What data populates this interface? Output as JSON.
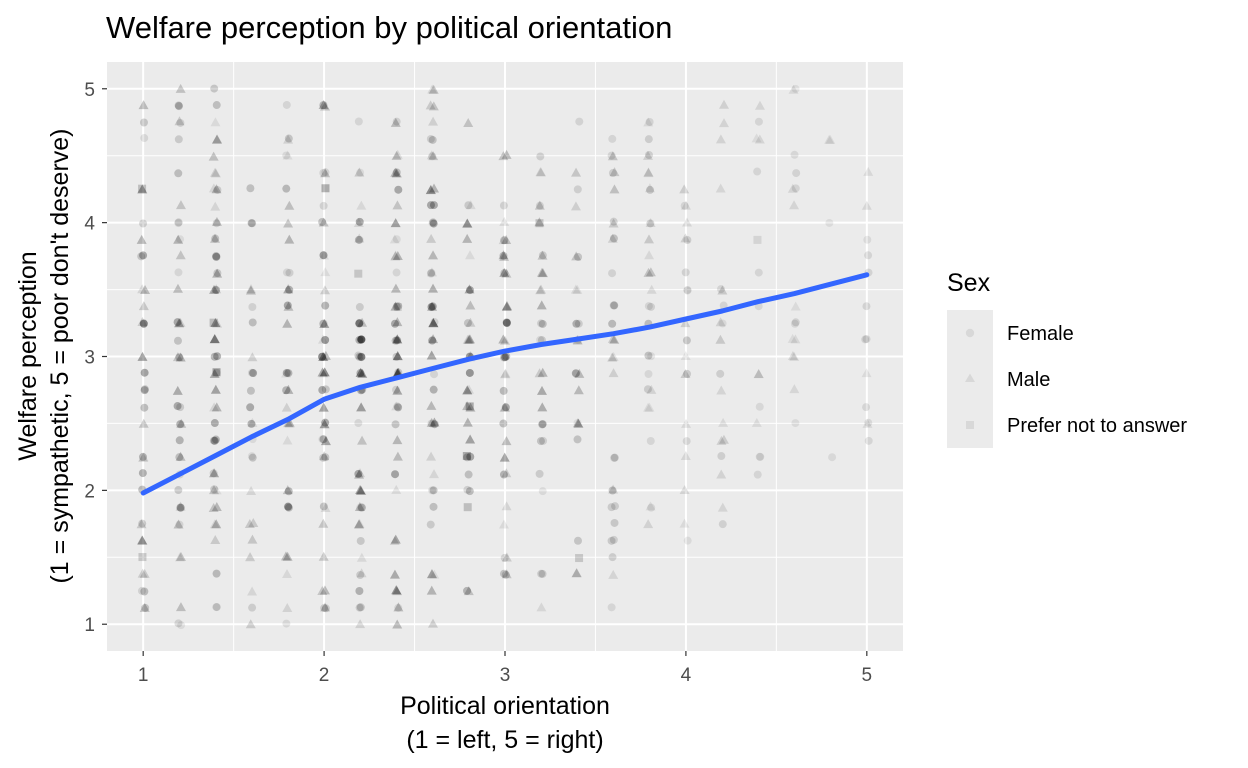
{
  "chart_data": {
    "type": "scatter",
    "title": "Welfare perception by political orientation",
    "xlabel": [
      "Political orientation",
      "(1 = left, 5 = right)"
    ],
    "ylabel": [
      "Welfare perception",
      "(1 = sympathetic, 5 = poor don't deserve)"
    ],
    "xlim": [
      0.8,
      5.2
    ],
    "ylim": [
      0.8,
      5.2
    ],
    "x_ticks": [
      1,
      2,
      3,
      4,
      5
    ],
    "y_ticks": [
      1,
      2,
      3,
      4,
      5
    ],
    "grid": true,
    "legend": {
      "title": "Sex",
      "position": "right",
      "entries": [
        {
          "label": "Female",
          "shape": "circle"
        },
        {
          "label": "Male",
          "shape": "triangle"
        },
        {
          "label": "Prefer not to answer",
          "shape": "square"
        }
      ]
    },
    "point_color": "#000000",
    "point_opacity": "low (overlapping points darken)",
    "x_grid_values": [
      1,
      1.2,
      1.4,
      1.6,
      1.8,
      2,
      2.2,
      2.4,
      2.6,
      2.8,
      3,
      3.2,
      3.4,
      3.6,
      3.8,
      4,
      4.2,
      4.4,
      4.6,
      4.8,
      5
    ],
    "y_grid_step": 0.125,
    "point_ranges": [
      {
        "x": 1.0,
        "y_min": 1.0,
        "y_max": 5.0,
        "density": 0.7
      },
      {
        "x": 1.2,
        "y_min": 1.0,
        "y_max": 5.0,
        "density": 0.6
      },
      {
        "x": 1.4,
        "y_min": 1.0,
        "y_max": 5.0,
        "density": 0.65
      },
      {
        "x": 1.6,
        "y_min": 1.0,
        "y_max": 4.75,
        "density": 0.55
      },
      {
        "x": 1.8,
        "y_min": 1.0,
        "y_max": 5.0,
        "density": 0.6
      },
      {
        "x": 2.0,
        "y_min": 1.0,
        "y_max": 4.875,
        "density": 0.85
      },
      {
        "x": 2.2,
        "y_min": 1.0,
        "y_max": 5.0,
        "density": 0.8
      },
      {
        "x": 2.4,
        "y_min": 1.0,
        "y_max": 5.0,
        "density": 0.85
      },
      {
        "x": 2.6,
        "y_min": 1.0,
        "y_max": 5.0,
        "density": 0.8
      },
      {
        "x": 2.8,
        "y_min": 1.0,
        "y_max": 4.75,
        "density": 0.75
      },
      {
        "x": 3.0,
        "y_min": 1.0,
        "y_max": 4.75,
        "density": 0.7
      },
      {
        "x": 3.2,
        "y_min": 1.125,
        "y_max": 4.625,
        "density": 0.5
      },
      {
        "x": 3.4,
        "y_min": 1.375,
        "y_max": 4.75,
        "density": 0.45
      },
      {
        "x": 3.6,
        "y_min": 1.125,
        "y_max": 5.0,
        "density": 0.4
      },
      {
        "x": 3.8,
        "y_min": 1.5,
        "y_max": 4.875,
        "density": 0.3
      },
      {
        "x": 4.0,
        "y_min": 1.5,
        "y_max": 4.75,
        "density": 0.25
      },
      {
        "x": 4.2,
        "y_min": 1.375,
        "y_max": 5.0,
        "density": 0.2
      },
      {
        "x": 4.4,
        "y_min": 2.0,
        "y_max": 4.875,
        "density": 0.15
      },
      {
        "x": 4.6,
        "y_min": 2.125,
        "y_max": 5.0,
        "density": 0.12
      },
      {
        "x": 4.8,
        "y_min": 2.25,
        "y_max": 4.75,
        "density": 0.12
      },
      {
        "x": 5.0,
        "y_min": 2.125,
        "y_max": 4.375,
        "density": 0.1
      }
    ],
    "series": [
      {
        "type": "line",
        "color": "#3366FF",
        "x": [
          1.0,
          1.2,
          1.4,
          1.6,
          1.8,
          2.0,
          2.2,
          2.4,
          2.6,
          2.8,
          3.0,
          3.2,
          3.4,
          3.6,
          3.8,
          4.0,
          4.2,
          4.4,
          4.6,
          4.8,
          5.0
        ],
        "y": [
          1.98,
          2.12,
          2.26,
          2.4,
          2.53,
          2.68,
          2.77,
          2.84,
          2.91,
          2.98,
          3.04,
          3.09,
          3.13,
          3.17,
          3.22,
          3.28,
          3.34,
          3.41,
          3.47,
          3.54,
          3.61
        ]
      }
    ]
  }
}
